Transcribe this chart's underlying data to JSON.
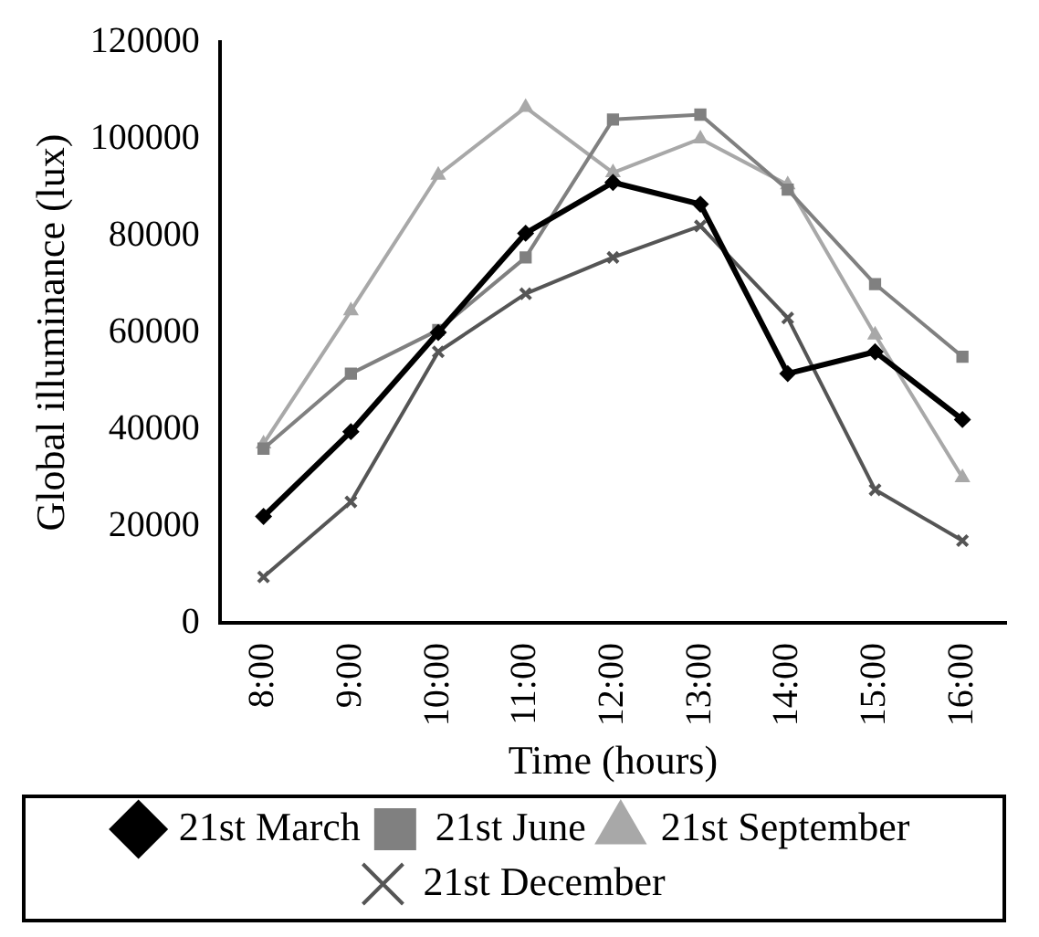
{
  "chart_data": {
    "type": "line",
    "xlabel": "Time (hours)",
    "ylabel": "Global illuminance (lux)",
    "categories": [
      "8:00",
      "9:00",
      "10:00",
      "11:00",
      "12:00",
      "13:00",
      "14:00",
      "15:00",
      "16:00"
    ],
    "ylim": [
      0,
      120000
    ],
    "yticks": [
      0,
      20000,
      40000,
      60000,
      80000,
      100000,
      120000
    ],
    "grid": false,
    "legend": "bottom",
    "series": [
      {
        "name": "21st March",
        "color": "#000000",
        "marker": "diamond",
        "values": [
          22000,
          39500,
          60000,
          80500,
          91000,
          86500,
          51500,
          56000,
          42000
        ]
      },
      {
        "name": "21st June",
        "color": "#808080",
        "marker": "square",
        "values": [
          36000,
          51500,
          60500,
          75500,
          104000,
          105000,
          89500,
          70000,
          55000
        ]
      },
      {
        "name": "21st September",
        "color": "#a8a8a8",
        "marker": "triangle",
        "values": [
          37000,
          64500,
          92500,
          106500,
          93000,
          100000,
          90500,
          59500,
          30000
        ]
      },
      {
        "name": "21st December",
        "color": "#555555",
        "marker": "cross",
        "values": [
          9500,
          25000,
          56000,
          68000,
          75500,
          82000,
          63000,
          27500,
          17000
        ]
      }
    ]
  }
}
